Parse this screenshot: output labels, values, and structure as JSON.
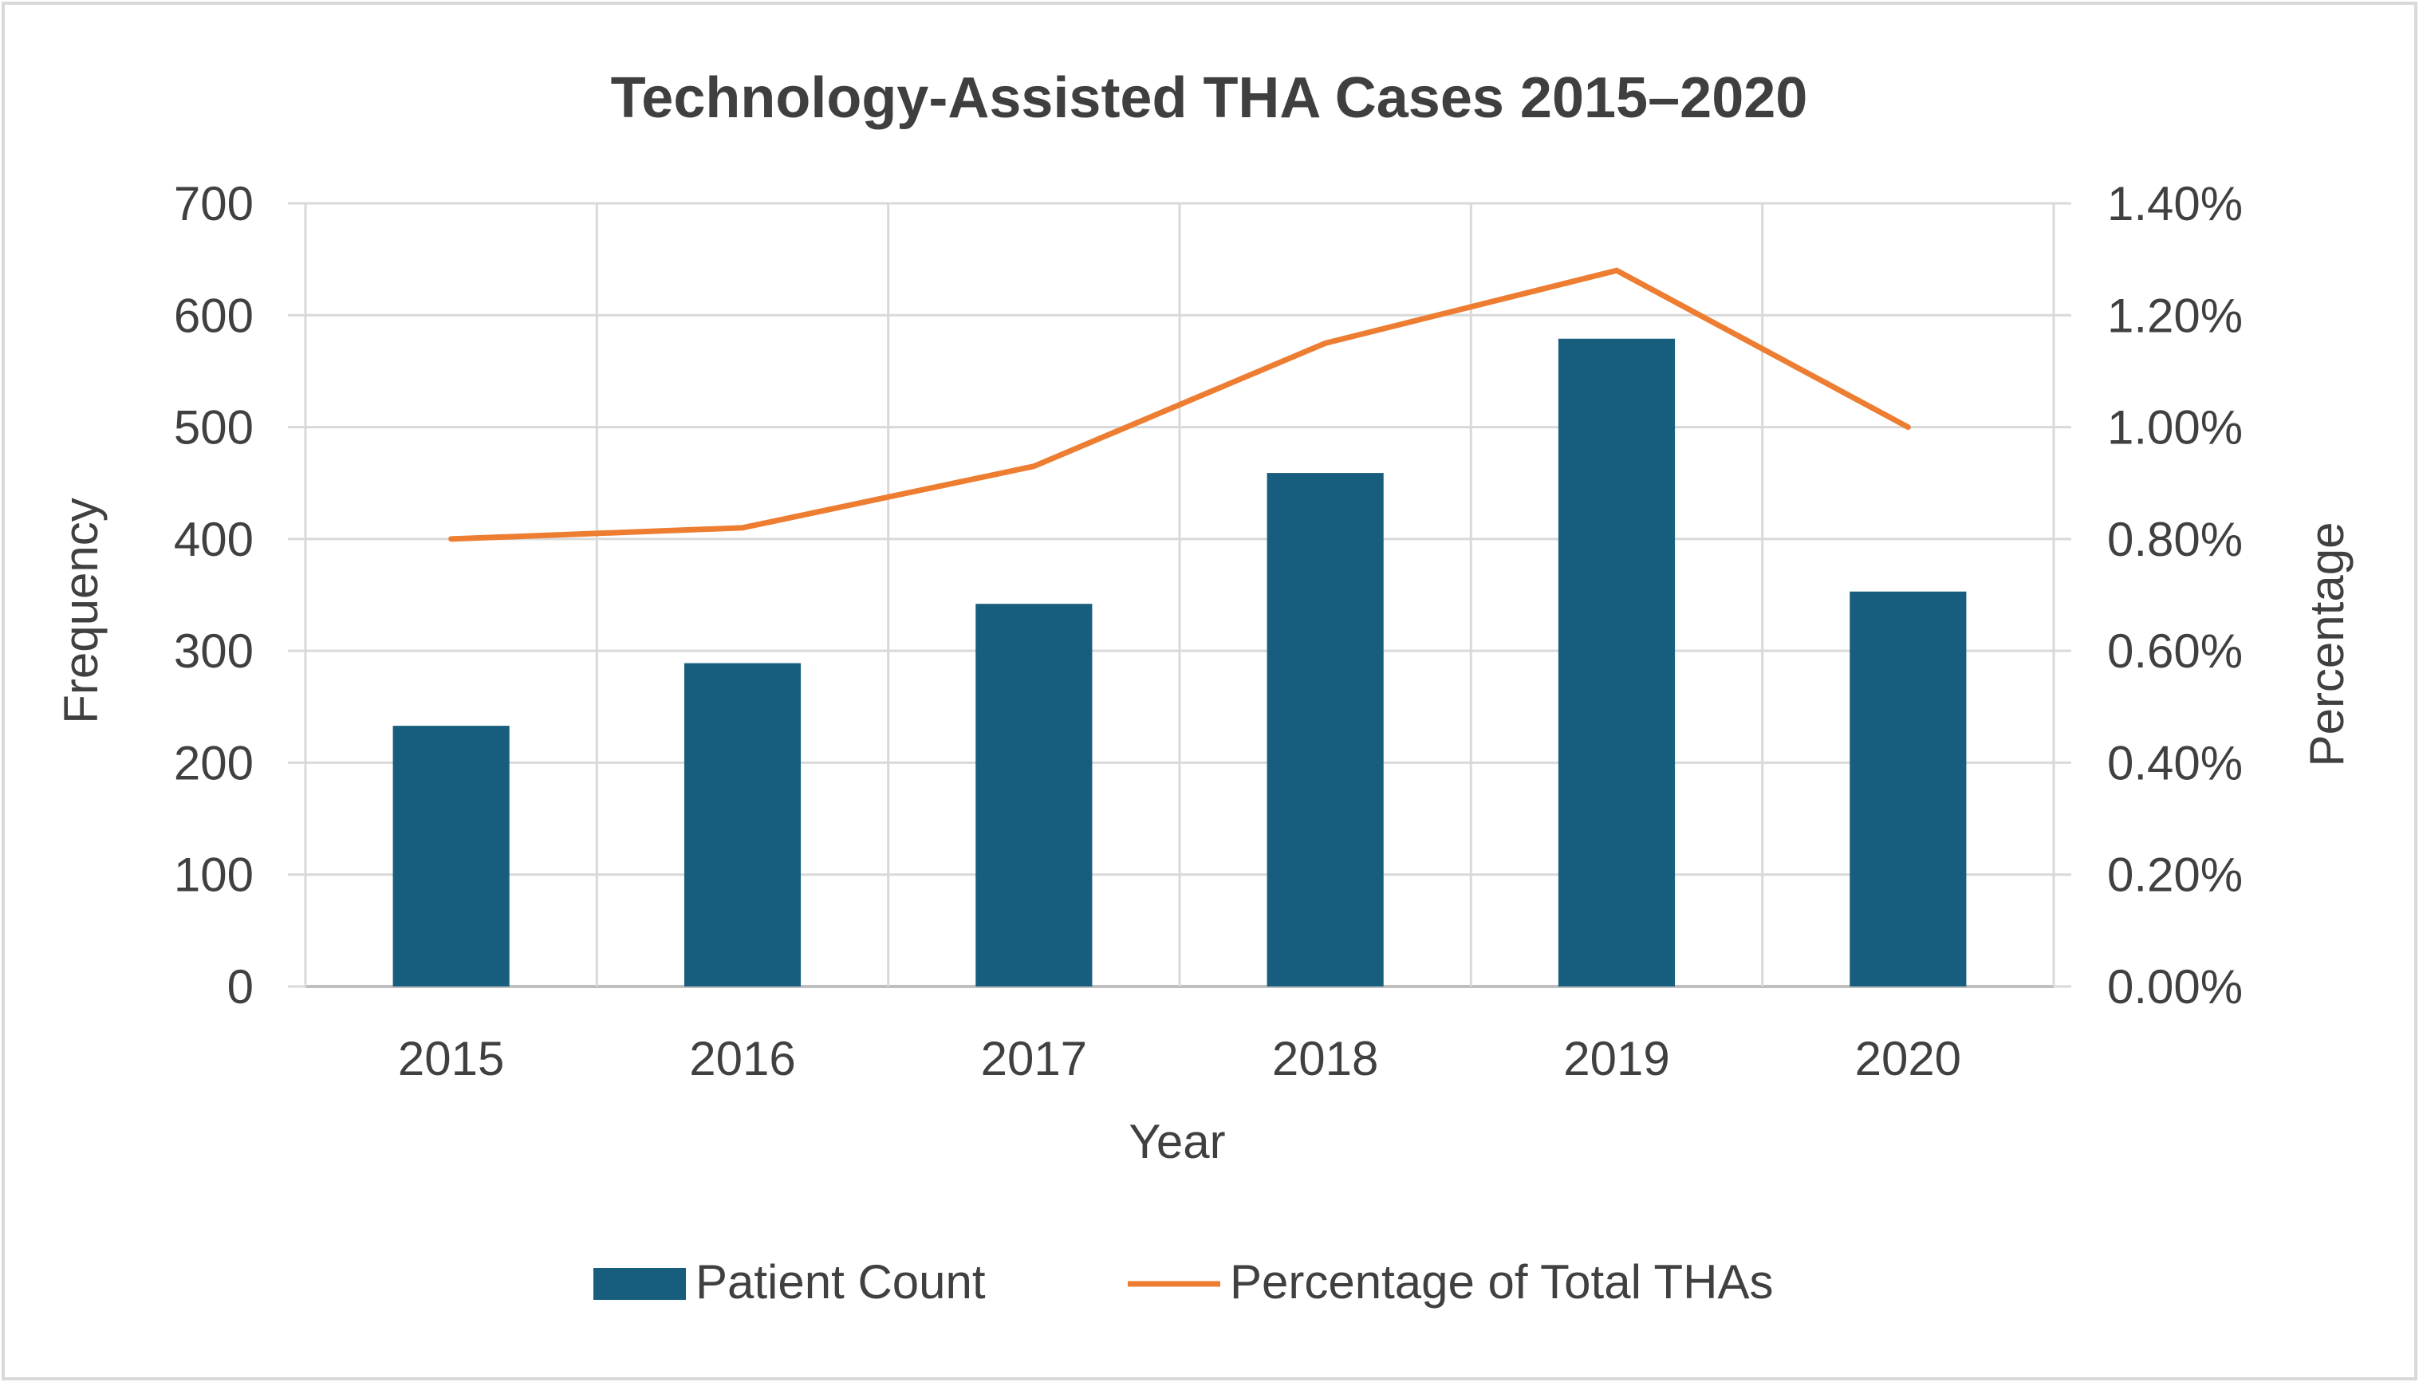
{
  "chart_data": {
    "type": "bar",
    "title": "Technology-Assisted THA Cases 2015–2020",
    "categories": [
      "2015",
      "2016",
      "2017",
      "2018",
      "2019",
      "2020"
    ],
    "xlabel": "Year",
    "ylabel": "Frequency",
    "y2label": "Percentage",
    "ylim": [
      0,
      700
    ],
    "y2lim": [
      0,
      1.4
    ],
    "yticks": [
      "0",
      "100",
      "200",
      "300",
      "400",
      "500",
      "600",
      "700"
    ],
    "y2ticks": [
      "0.00%",
      "0.20%",
      "0.40%",
      "0.60%",
      "0.80%",
      "1.00%",
      "1.20%",
      "1.40%"
    ],
    "grid": true,
    "legend_position": "bottom",
    "series": [
      {
        "name": "Patient Count",
        "type": "bar",
        "axis": "left",
        "color": "#175e7e",
        "values": [
          233,
          289,
          342,
          459,
          579,
          353
        ]
      },
      {
        "name": "Percentage of Total THAs",
        "type": "line",
        "axis": "right",
        "unit": "%",
        "color": "#ed7d31",
        "values": [
          0.8,
          0.82,
          0.93,
          1.15,
          1.28,
          1.0
        ]
      }
    ]
  }
}
